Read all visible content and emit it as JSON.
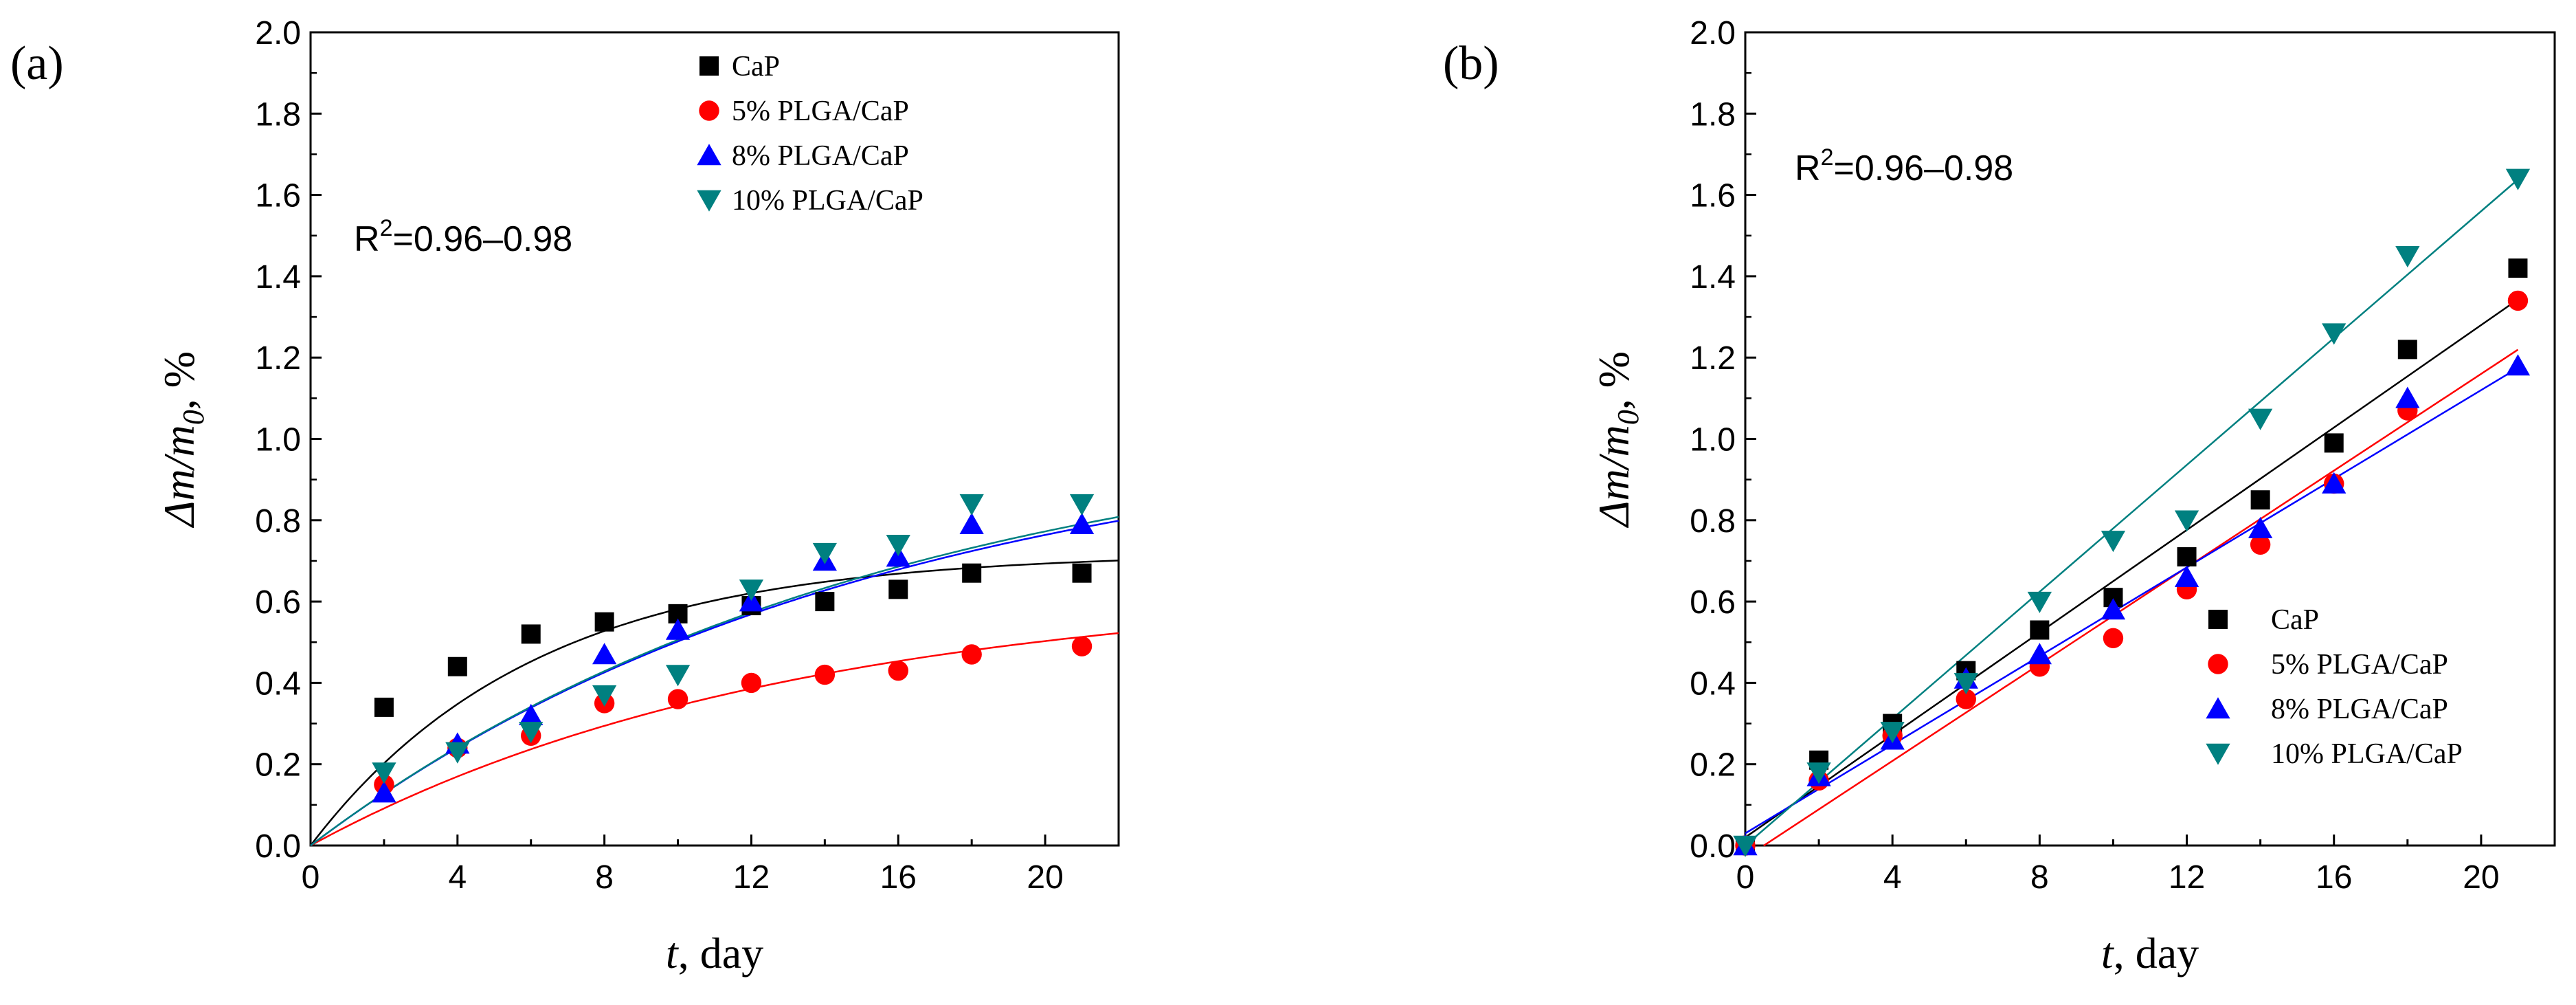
{
  "chart_data": [
    {
      "type": "scatter",
      "panel_label": "(a)",
      "title": "",
      "xlabel_var": "t",
      "xlabel_rest": ", day",
      "ylabel_html": [
        "Δm/m",
        "0",
        ", %"
      ],
      "xlim": [
        0,
        22
      ],
      "ylim": [
        0,
        2.0
      ],
      "xticks": [
        0,
        4,
        8,
        12,
        16,
        20
      ],
      "xtick_labels": [
        "0",
        "4",
        "8",
        "12",
        "16",
        "20"
      ],
      "yticks": [
        0.0,
        0.2,
        0.4,
        0.6,
        0.8,
        1.0,
        1.2,
        1.4,
        1.6,
        1.8,
        2.0
      ],
      "ytick_labels": [
        "0.0",
        "0.2",
        "0.4",
        "0.6",
        "0.8",
        "1.0",
        "1.2",
        "1.4",
        "1.6",
        "1.8",
        "2.0"
      ],
      "annotation": {
        "base": "R",
        "sup": "2",
        "rest": "=0.96–0.98"
      },
      "legend_position": "top-right",
      "fit_type": "saturation",
      "series": [
        {
          "name": "CaP",
          "color": "#000000",
          "marker": "square",
          "x": [
            2,
            4,
            6,
            8,
            10,
            12,
            14,
            16,
            18,
            21
          ],
          "y": [
            0.34,
            0.44,
            0.52,
            0.55,
            0.57,
            0.59,
            0.6,
            0.63,
            0.67,
            0.67
          ],
          "fit": {
            "a": 0.72,
            "b": 0.165
          }
        },
        {
          "name": "5% PLGA/CaP",
          "color": "#ff0000",
          "marker": "circle",
          "x": [
            2,
            4,
            6,
            8,
            10,
            12,
            14,
            16,
            18,
            21
          ],
          "y": [
            0.15,
            0.24,
            0.27,
            0.35,
            0.36,
            0.4,
            0.42,
            0.43,
            0.47,
            0.49
          ],
          "fit": {
            "a": 0.64,
            "b": 0.077
          }
        },
        {
          "name": "8% PLGA/CaP",
          "color": "#0000ff",
          "marker": "triangle-up",
          "x": [
            2,
            4,
            6,
            8,
            10,
            12,
            14,
            16,
            18,
            21
          ],
          "y": [
            0.13,
            0.25,
            0.32,
            0.47,
            0.53,
            0.6,
            0.7,
            0.71,
            0.79,
            0.79
          ],
          "fit": {
            "a": 1.05,
            "b": 0.065
          }
        },
        {
          "name": "10% PLGA/CaP",
          "color": "#008080",
          "marker": "triangle-down",
          "x": [
            2,
            4,
            6,
            8,
            10,
            12,
            14,
            16,
            18,
            21
          ],
          "y": [
            0.18,
            0.23,
            0.28,
            0.37,
            0.42,
            0.63,
            0.72,
            0.74,
            0.84,
            0.84
          ],
          "fit": {
            "a": 1.07,
            "b": 0.064
          }
        }
      ]
    },
    {
      "type": "scatter",
      "panel_label": "(b)",
      "title": "",
      "xlabel_var": "t",
      "xlabel_rest": ", day",
      "ylabel_html": [
        "Δm/m",
        "0",
        ", %"
      ],
      "xlim": [
        0,
        22
      ],
      "ylim": [
        0,
        2.0
      ],
      "xticks": [
        0,
        4,
        8,
        12,
        16,
        20
      ],
      "xtick_labels": [
        "0",
        "4",
        "8",
        "12",
        "16",
        "20"
      ],
      "yticks": [
        0.0,
        0.2,
        0.4,
        0.6,
        0.8,
        1.0,
        1.2,
        1.4,
        1.6,
        1.8,
        2.0
      ],
      "ytick_labels": [
        "0.0",
        "0.2",
        "0.4",
        "0.6",
        "0.8",
        "1.0",
        "1.2",
        "1.4",
        "1.6",
        "1.8",
        "2.0"
      ],
      "annotation": {
        "base": "R",
        "sup": "2",
        "rest": "=0.96–0.98"
      },
      "legend_position": "bottom-right",
      "fit_type": "linear",
      "series": [
        {
          "name": "CaP",
          "color": "#000000",
          "marker": "square",
          "x": [
            0,
            2,
            4,
            6,
            8,
            10,
            12,
            14,
            16,
            18,
            21
          ],
          "y": [
            0.0,
            0.21,
            0.3,
            0.43,
            0.53,
            0.61,
            0.71,
            0.85,
            0.99,
            1.22,
            1.42
          ],
          "fit": {
            "slope": 0.063,
            "intercept": 0.02,
            "x0": 0,
            "x1": 21
          }
        },
        {
          "name": "5% PLGA/CaP",
          "color": "#ff0000",
          "marker": "circle",
          "x": [
            0,
            2,
            4,
            6,
            8,
            10,
            12,
            14,
            16,
            18,
            21
          ],
          "y": [
            0.0,
            0.16,
            0.27,
            0.36,
            0.44,
            0.51,
            0.63,
            0.74,
            0.89,
            1.07,
            1.34
          ],
          "fit": {
            "slope": 0.0595,
            "intercept": -0.03,
            "x0": 0.5,
            "x1": 21
          }
        },
        {
          "name": "8% PLGA/CaP",
          "color": "#0000ff",
          "marker": "triangle-up",
          "x": [
            0,
            2,
            4,
            6,
            8,
            10,
            12,
            14,
            16,
            18,
            21
          ],
          "y": [
            0.0,
            0.17,
            0.26,
            0.41,
            0.47,
            0.58,
            0.66,
            0.78,
            0.89,
            1.1,
            1.18
          ],
          "fit": {
            "slope": 0.0545,
            "intercept": 0.03,
            "x0": 0,
            "x1": 21
          }
        },
        {
          "name": "10% PLGA/CaP",
          "color": "#008080",
          "marker": "triangle-down",
          "x": [
            0,
            2,
            4,
            6,
            8,
            10,
            12,
            14,
            16,
            18,
            21
          ],
          "y": [
            0.0,
            0.18,
            0.28,
            0.4,
            0.6,
            0.75,
            0.8,
            1.05,
            1.26,
            1.45,
            1.64
          ],
          "fit": {
            "slope": 0.078,
            "intercept": 0.0,
            "x0": 0,
            "x1": 21
          }
        }
      ]
    }
  ]
}
